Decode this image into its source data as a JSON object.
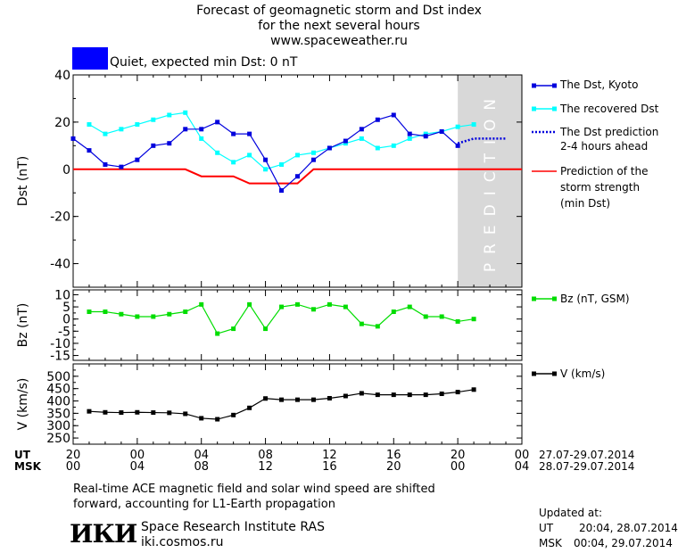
{
  "header": {
    "title_line1": "Forecast of geomagnetic storm and Dst index",
    "title_line2": "for the next several hours",
    "title_line3": "www.spaceweather.ru",
    "status_text": "Quiet, expected min Dst: 0 nT",
    "status_color": "#0000ff"
  },
  "prediction_label": "PREDICTION",
  "legend": {
    "dst_kyoto": "The Dst, Kyoto",
    "recovered": "The recovered Dst",
    "prediction_line1": "The Dst prediction",
    "prediction_line2": "2-4 hours ahead",
    "strength_line1": "Prediction of the",
    "strength_line2": "storm strength",
    "strength_line3": "(min Dst)",
    "bz": "Bz (nT, GSM)",
    "v": "V (km/s)"
  },
  "time_axis": {
    "ut_label": "UT",
    "msk_label": "MSK",
    "ut_ticks": [
      "20",
      "00",
      "04",
      "08",
      "12",
      "16",
      "20",
      "00"
    ],
    "msk_ticks": [
      "00",
      "04",
      "08",
      "12",
      "16",
      "20",
      "00",
      "04"
    ],
    "ut_range": "27.07-29.07.2014",
    "msk_range": "28.07-29.07.2014"
  },
  "footer": {
    "note_line1": "Real-time ACE magnetic field and solar wind speed are shifted",
    "note_line2": "forward, accounting for L1-Earth propagation",
    "logo_text": "ИКИ",
    "institute": "Space Research Institute RAS",
    "website": "iki.cosmos.ru",
    "updated_label": "Updated at:",
    "updated_ut_label": "UT",
    "updated_ut_time": "20:04, 28.07.2014",
    "updated_msk_label": "MSK",
    "updated_msk_time": "00:04, 29.07.2014"
  },
  "chart_data": [
    {
      "type": "line",
      "ylabel": "Dst (nT)",
      "x_unit": "hours from 20 UT 27.07.2014",
      "xlim": [
        0,
        28
      ],
      "ylim": [
        -50,
        40
      ],
      "yticks": [
        -40,
        -20,
        0,
        20,
        40
      ],
      "prediction_region": [
        24,
        28
      ],
      "colors": {
        "dst_kyoto": "#0000dd",
        "recovered": "#00ffff",
        "prediction": "#0000dd",
        "strength": "#ff0000"
      },
      "series": [
        {
          "name": "The Dst, Kyoto",
          "x": [
            0,
            1,
            2,
            3,
            4,
            5,
            6,
            7,
            8,
            9,
            10,
            11,
            12,
            13,
            14,
            15,
            16,
            17,
            18,
            19,
            20,
            21,
            22,
            23,
            24
          ],
          "values": [
            13,
            8,
            2,
            1,
            4,
            10,
            11,
            17,
            17,
            20,
            15,
            15,
            4,
            -9,
            -3,
            4,
            9,
            12,
            17,
            21,
            23,
            15,
            14,
            16,
            10
          ]
        },
        {
          "name": "The recovered Dst",
          "x": [
            1,
            2,
            3,
            4,
            5,
            6,
            7,
            8,
            9,
            10,
            11,
            12,
            13,
            14,
            15,
            16,
            17,
            18,
            19,
            20,
            21,
            22,
            23,
            24,
            25
          ],
          "values": [
            19,
            15,
            17,
            19,
            21,
            23,
            24,
            13,
            7,
            3,
            6,
            0,
            2,
            6,
            7,
            9,
            11,
            13,
            9,
            10,
            13,
            15,
            16,
            18,
            19
          ]
        },
        {
          "name": "The Dst prediction",
          "x": [
            24,
            25,
            26,
            27
          ],
          "values": [
            11,
            13,
            13,
            13
          ]
        },
        {
          "name": "Prediction of the storm strength",
          "x": [
            0,
            7,
            8,
            10,
            11,
            14,
            15,
            28
          ],
          "values": [
            0,
            0,
            -3,
            -3,
            -6,
            -6,
            0,
            0
          ]
        }
      ]
    },
    {
      "type": "line",
      "ylabel": "Bz (nT)",
      "xlim": [
        0,
        28
      ],
      "ylim": [
        -17,
        12
      ],
      "yticks": [
        -15,
        -10,
        -5,
        0,
        5,
        10
      ],
      "color": "#00dd00",
      "series": [
        {
          "name": "Bz (nT, GSM)",
          "x": [
            1,
            2,
            3,
            4,
            5,
            6,
            7,
            8,
            9,
            10,
            11,
            12,
            13,
            14,
            15,
            16,
            17,
            18,
            19,
            20,
            21,
            22,
            23,
            24,
            25
          ],
          "values": [
            3,
            3,
            2,
            1,
            1,
            2,
            3,
            6,
            -6,
            -4,
            6,
            -4,
            5,
            6,
            4,
            6,
            5,
            -2,
            -3,
            3,
            5,
            1,
            1,
            -1,
            0
          ]
        }
      ]
    },
    {
      "type": "line",
      "ylabel": "V (km/s)",
      "xlim": [
        0,
        28
      ],
      "ylim": [
        225,
        550
      ],
      "yticks": [
        250,
        300,
        350,
        400,
        450,
        500
      ],
      "color": "#000000",
      "series": [
        {
          "name": "V (km/s)",
          "x": [
            1,
            2,
            3,
            4,
            5,
            6,
            7,
            8,
            9,
            10,
            11,
            12,
            13,
            14,
            15,
            16,
            17,
            18,
            19,
            20,
            21,
            22,
            23,
            24,
            25
          ],
          "values": [
            358,
            354,
            353,
            354,
            353,
            352,
            348,
            330,
            326,
            343,
            372,
            410,
            405,
            405,
            405,
            411,
            420,
            431,
            425,
            425,
            425,
            425,
            429,
            436,
            446
          ]
        }
      ]
    }
  ]
}
